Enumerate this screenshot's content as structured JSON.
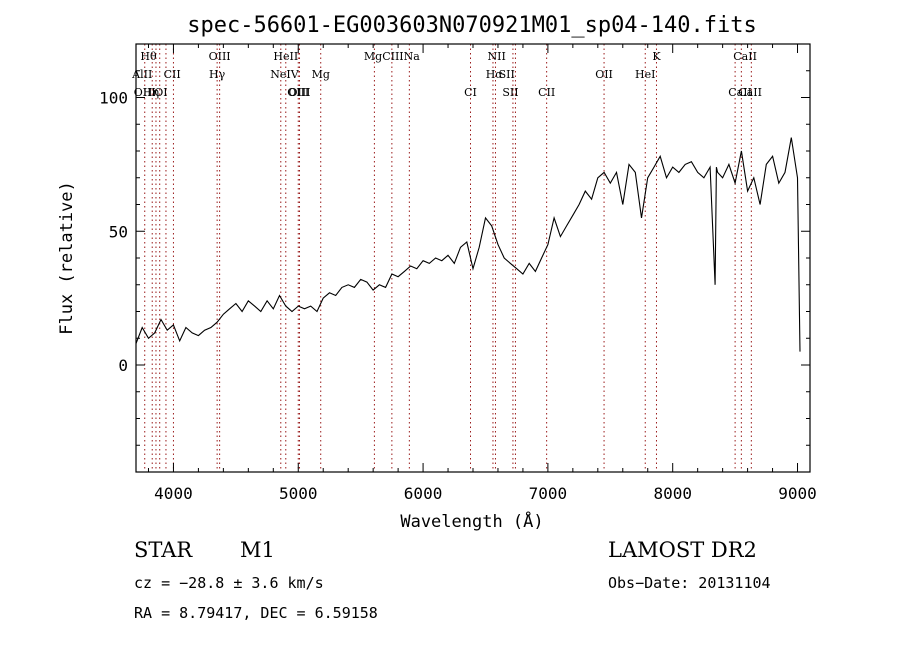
{
  "chart_data": {
    "type": "line",
    "title": "spec-56601-EG003603N070921M01_sp04-140.fits",
    "xlabel": "Wavelength (Å)",
    "ylabel": "Flux (relative)",
    "xlim": [
      3700,
      9100
    ],
    "ylim": [
      -40,
      120
    ],
    "xticks": [
      4000,
      5000,
      6000,
      7000,
      8000,
      9000
    ],
    "yticks": [
      0,
      50,
      100
    ],
    "grid": false,
    "series": [
      {
        "x": [
          3700,
          3750,
          3800,
          3850,
          3900,
          3950,
          4000,
          4050,
          4100,
          4150,
          4200,
          4250,
          4300,
          4350,
          4400,
          4450,
          4500,
          4550,
          4600,
          4650,
          4700,
          4750,
          4800,
          4850,
          4900,
          4950,
          5000,
          5050,
          5100,
          5150,
          5200,
          5250,
          5300,
          5350,
          5400,
          5450,
          5500,
          5550,
          5600,
          5650,
          5700,
          5750,
          5800,
          5850,
          5900,
          5950,
          6000,
          6050,
          6100,
          6150,
          6200,
          6250,
          6300,
          6350,
          6400,
          6450,
          6500,
          6550,
          6600,
          6650,
          6700,
          6750,
          6800,
          6850,
          6900,
          6950,
          7000,
          7050,
          7100,
          7150,
          7200,
          7250,
          7300,
          7350,
          7400,
          7450,
          7500,
          7550,
          7600,
          7650,
          7700,
          7750,
          7800,
          7850,
          7900,
          7950,
          8000,
          8050,
          8100,
          8150,
          8200,
          8250,
          8300,
          8340,
          8350,
          8360,
          8400,
          8450,
          8500,
          8550,
          8600,
          8650,
          8700,
          8750,
          8800,
          8850,
          8900,
          8950,
          9000,
          9020
        ],
        "values": [
          8,
          14,
          10,
          12,
          17,
          13,
          15,
          9,
          14,
          12,
          11,
          13,
          14,
          16,
          19,
          21,
          23,
          20,
          24,
          22,
          20,
          24,
          21,
          26,
          22,
          20,
          22,
          21,
          22,
          20,
          25,
          27,
          26,
          29,
          30,
          29,
          32,
          31,
          28,
          30,
          29,
          34,
          33,
          35,
          37,
          36,
          39,
          38,
          40,
          39,
          41,
          38,
          44,
          46,
          36,
          44,
          55,
          52,
          45,
          40,
          38,
          36,
          34,
          38,
          35,
          40,
          45,
          55,
          48,
          52,
          56,
          60,
          65,
          62,
          70,
          72,
          68,
          72,
          60,
          75,
          72,
          55,
          70,
          74,
          78,
          70,
          74,
          72,
          75,
          76,
          72,
          70,
          74,
          30,
          74,
          72,
          70,
          75,
          68,
          80,
          65,
          70,
          60,
          75,
          78,
          68,
          72,
          85,
          70,
          5
        ]
      }
    ],
    "lines": [
      "Hθ",
      "AlII",
      "OIII",
      "Hη",
      "OI",
      "CII",
      "OIII",
      "Hγ",
      "HeII",
      "NeIV",
      "OIII",
      "OIII",
      "Mg",
      "MgCIIINa",
      "NII",
      "Hα",
      "SII",
      "CI",
      "SII",
      "CII",
      "OII",
      "K",
      "HeI",
      "CaII",
      "CaII",
      "CaII"
    ]
  },
  "info": {
    "object_class": "STAR",
    "subclass": "M1",
    "survey": "LAMOST DR2",
    "cz": "cz = −28.8 ± 3.6 km/s",
    "obs_date": "Obs−Date: 20131104",
    "coords": "RA =   8.79417, DEC =   6.59158"
  }
}
